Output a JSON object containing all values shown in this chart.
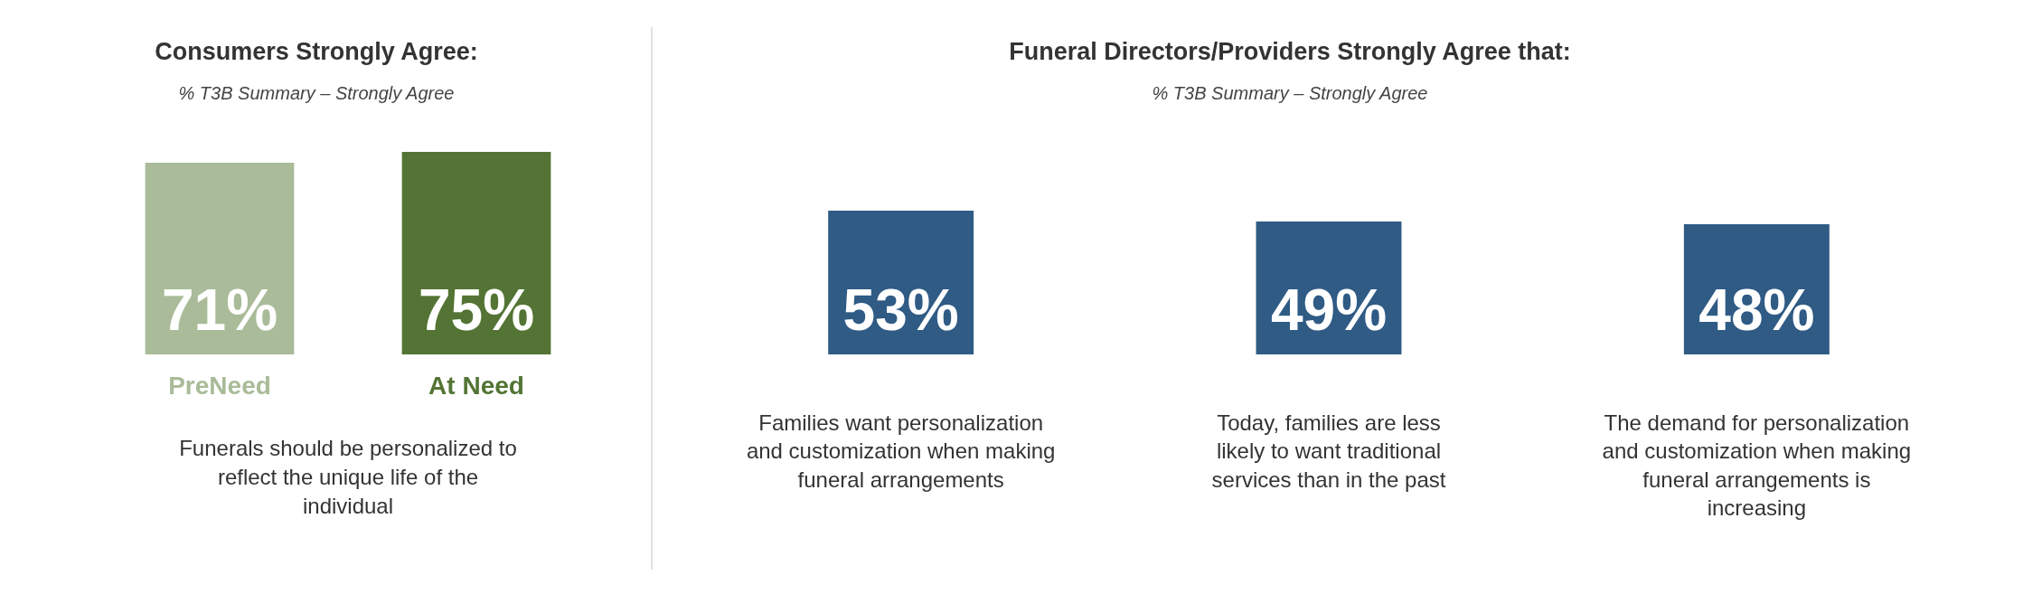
{
  "chart_data": [
    {
      "type": "bar",
      "title": "Consumers Strongly Agree:",
      "subtitle": "% T3B Summary – Strongly Agree",
      "categories": [
        "PreNeed",
        "At Need"
      ],
      "values": [
        71,
        75
      ],
      "colors": [
        "#a9bb98",
        "#537434"
      ],
      "value_labels": [
        "71%",
        "75%"
      ],
      "tick_labels": "x",
      "grid": false,
      "legend": false,
      "annotations": [
        "Funerals should be personalized to reflect the unique life of the individual"
      ]
    },
    {
      "type": "bar",
      "title": "Funeral Directors/Providers Strongly Agree that:",
      "subtitle": "% T3B Summary – Strongly Agree",
      "categories": [
        "Families want personalization and customization when making funeral arrangements",
        "Today, families are less likely to want traditional services than in the past",
        "The demand for personalization and customization when making funeral arrangements is increasing"
      ],
      "values": [
        53,
        49,
        48
      ],
      "colors": [
        "#2f5b85",
        "#2f5b85",
        "#2f5b85"
      ],
      "value_labels": [
        "53%",
        "49%",
        "48%"
      ],
      "tick_labels": "x",
      "grid": false,
      "legend": false
    }
  ]
}
